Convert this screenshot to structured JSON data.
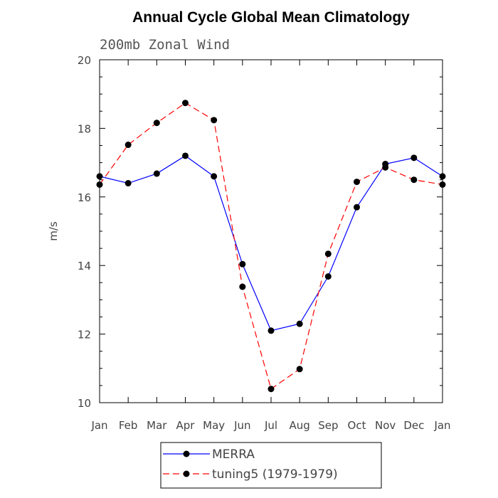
{
  "chart_data": {
    "type": "line",
    "title": "Annual Cycle Global Mean Climatology",
    "subtitle": "200mb Zonal Wind",
    "xlabel": "",
    "ylabel": "m/s",
    "categories": [
      "Jan",
      "Feb",
      "Mar",
      "Apr",
      "May",
      "Jun",
      "Jul",
      "Aug",
      "Sep",
      "Oct",
      "Nov",
      "Dec",
      "Jan"
    ],
    "ylim": [
      10,
      20
    ],
    "yticks": [
      10,
      12,
      14,
      16,
      18,
      20
    ],
    "grid": false,
    "legend_position": "bottom",
    "series": [
      {
        "name": "MERRA",
        "color": "#0000ff",
        "dash": "solid",
        "marker": "filled-circle",
        "values": [
          16.6,
          16.4,
          16.68,
          17.2,
          16.6,
          14.04,
          12.1,
          12.3,
          13.68,
          15.7,
          16.96,
          17.14,
          16.6
        ]
      },
      {
        "name": "tuning5 (1979-1979)",
        "color": "#ff0000",
        "dash": "dashed",
        "marker": "filled-circle",
        "values": [
          16.36,
          17.52,
          18.16,
          18.74,
          18.24,
          13.38,
          10.4,
          10.98,
          14.34,
          16.44,
          16.86,
          16.5,
          16.36
        ]
      }
    ]
  }
}
